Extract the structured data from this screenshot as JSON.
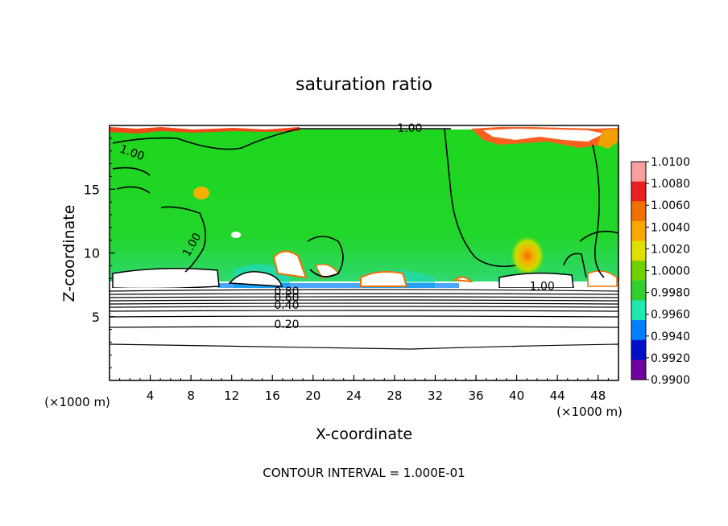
{
  "chart_data": {
    "type": "heatmap",
    "title": "saturation ratio",
    "xlabel": "X-coordinate",
    "ylabel": "Z-coordinate",
    "x_unit": "(×1000 m)",
    "xlim": [
      0,
      50
    ],
    "ylim": [
      0,
      20
    ],
    "x_ticks": [
      "4",
      "8",
      "12",
      "16",
      "20",
      "24",
      "28",
      "32",
      "36",
      "40",
      "44",
      "48"
    ],
    "y_ticks": [
      "5",
      "10",
      "15"
    ],
    "footer": "CONTOUR INTERVAL = 1.000E-01",
    "colorbar": {
      "labels": [
        "1.0100",
        "1.0080",
        "1.0060",
        "1.0040",
        "1.0020",
        "1.0000",
        "0.9980",
        "0.9960",
        "0.9940",
        "0.9920",
        "0.9900"
      ],
      "colors": [
        "#f8a0a0",
        "#e82020",
        "#f07000",
        "#f8a800",
        "#e0e000",
        "#70d000",
        "#30d030",
        "#20e8b0",
        "#0080ff",
        "#0010c8",
        "#7000a0"
      ]
    },
    "contour_labels": [
      {
        "text": "1.00",
        "x": 2.1,
        "z": 17.6,
        "rotate": 20
      },
      {
        "text": "1.00",
        "x": 29.5,
        "z": 19.5,
        "rotate": 0
      },
      {
        "text": "1.00",
        "x": 8.4,
        "z": 10.5,
        "rotate": -60
      },
      {
        "text": "1.00",
        "x": 42.5,
        "z": 7.1,
        "rotate": 0
      },
      {
        "text": "0.80",
        "x": 17.4,
        "z": 6.7,
        "rotate": 0
      },
      {
        "text": "0.60",
        "x": 17.4,
        "z": 6.2,
        "rotate": 0
      },
      {
        "text": "0.40",
        "x": 17.4,
        "z": 5.6,
        "rotate": 0
      },
      {
        "text": "0.20",
        "x": 17.4,
        "z": 4.1,
        "rotate": 0
      }
    ]
  }
}
